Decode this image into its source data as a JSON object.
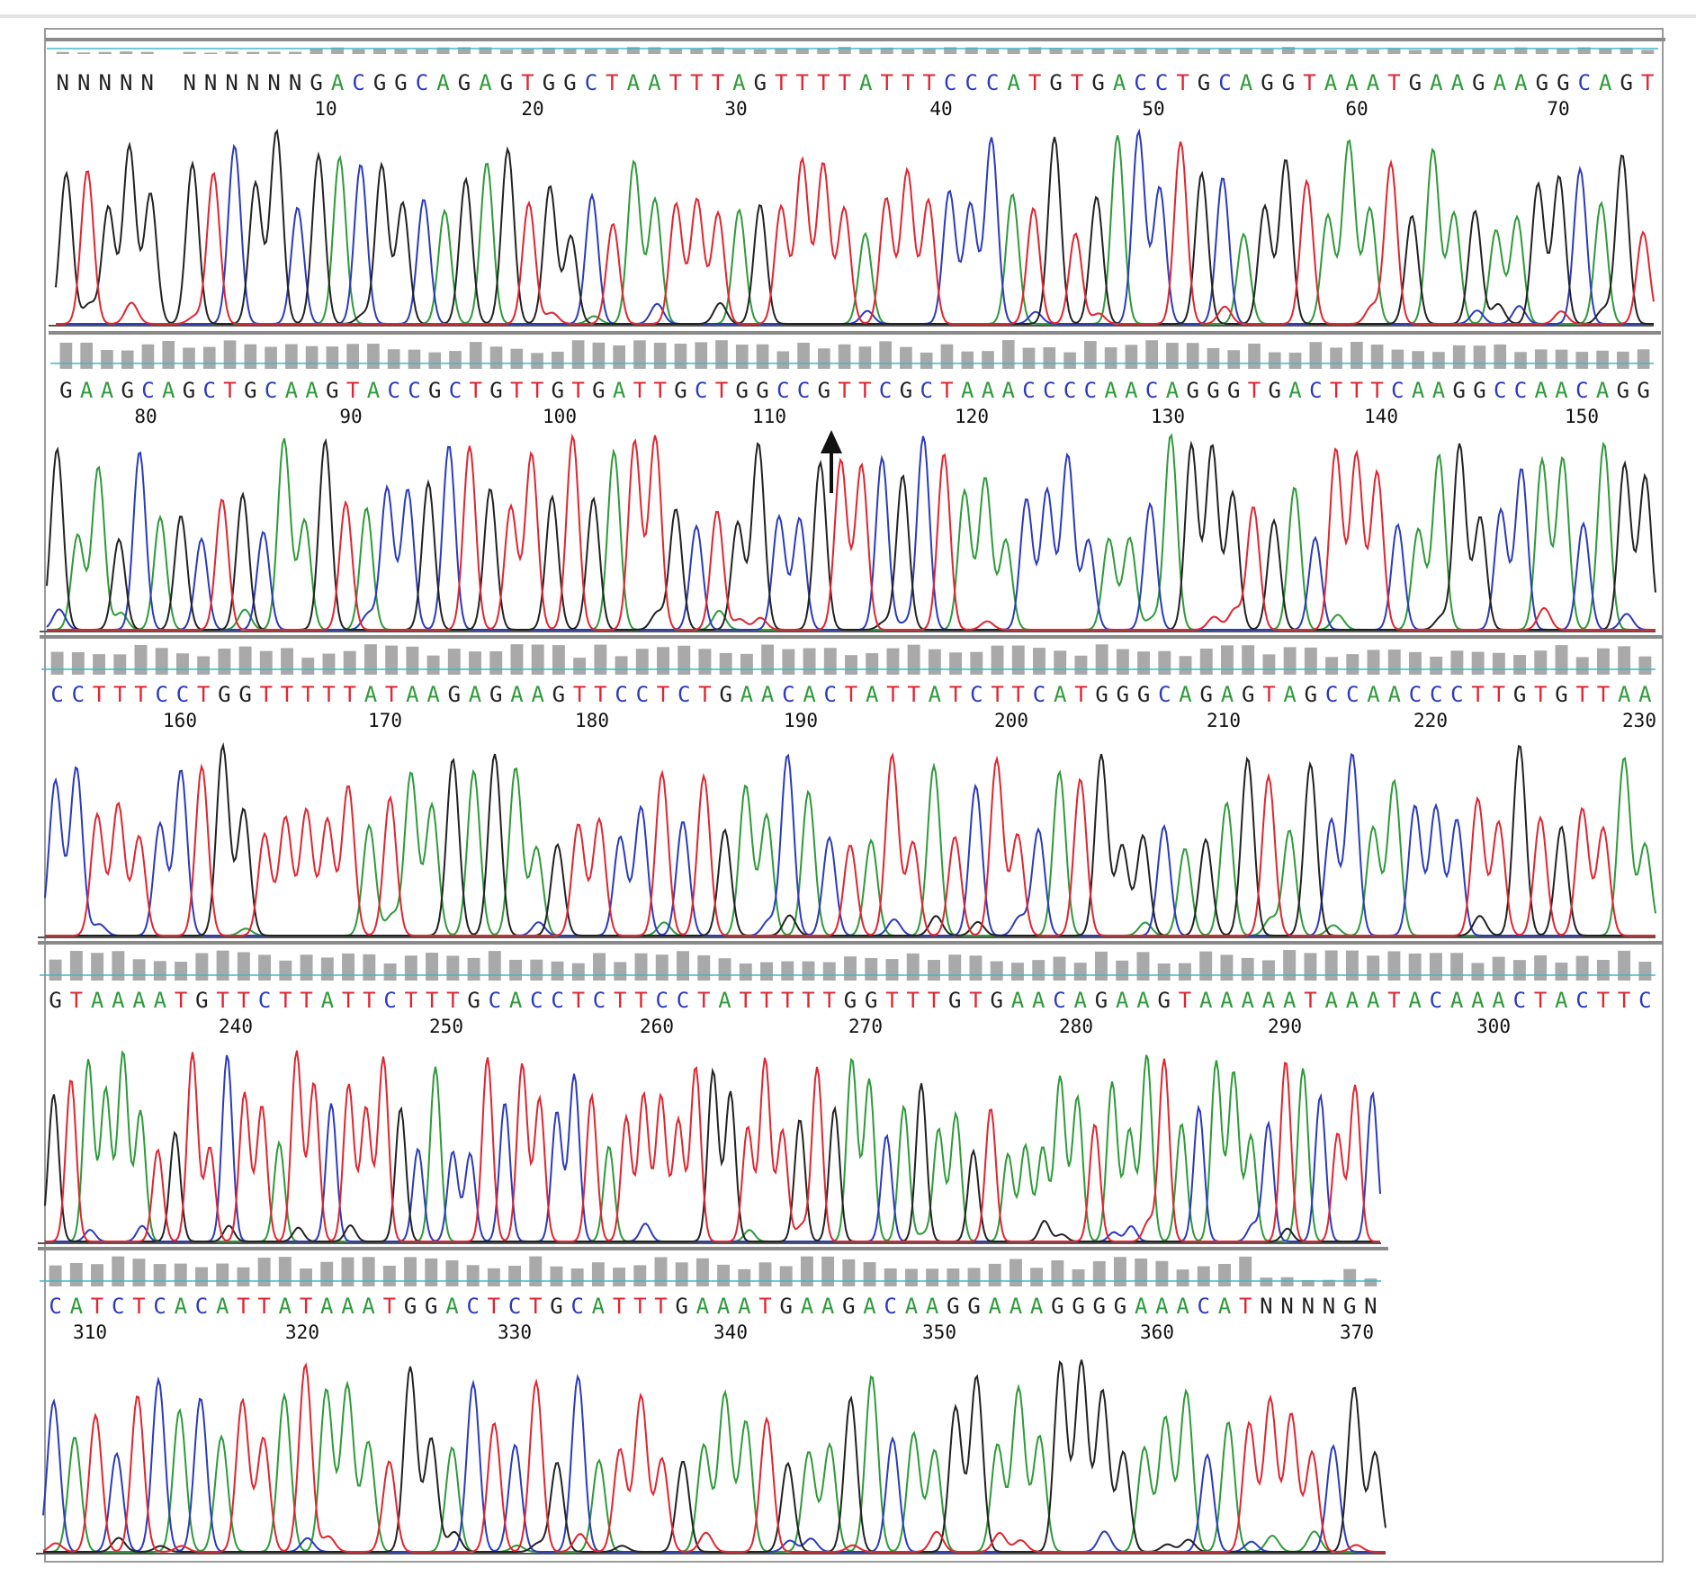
{
  "chart_data": {
    "type": "line",
    "base_colors": {
      "A": "#2e9a3a",
      "C": "#2b3bbb",
      "G": "#222222",
      "T": "#e02530",
      "N": "#222222"
    },
    "calls": [
      "NNNNN NNNNNNGACGGCAGAGTGGCTAATTTAGTTTTATTTCCCATGTGACCTGCAGGTAAATGAAGAAGGCAGT",
      "GAAGCAGCTGCAAGTACCGCTGTTGTGATTGCTGGCCGTTCGCTAAACCCCAACAGGGTGACTTTCAAGGCCAACAGG",
      "CCTTTCCTGGTTTTTATAAGAGAAGTTCCTCTGAACACTATTATCTTCATGGGCAGAGTAGCCAACCCTTGTGTTAA",
      "GTAAAATGTTCTTATTCTTTGCACCTCTTCCTATTTTTGGTTTGTGAACAGAAGTAAAAATAAATACAAACTACTTC",
      "CATCTCACATTATAAATGGACTCTGCATTTGAAATGAAGACAAGGAAAGGGGAAACATNNNNGN"
    ],
    "positions": [
      [
        "10",
        "20",
        "30",
        "40",
        "50",
        "60",
        "70"
      ],
      [
        "80",
        "90",
        "100",
        "110",
        "120",
        "130",
        "140",
        "150"
      ],
      [
        "160",
        "170",
        "180",
        "190",
        "200",
        "210",
        "220",
        "230"
      ],
      [
        "240",
        "250",
        "260",
        "270",
        "280",
        "290",
        "300"
      ],
      [
        "310",
        "320",
        "330",
        "340",
        "350",
        "360",
        "370"
      ]
    ],
    "marker": {
      "type": "arrow",
      "panel": 2,
      "position": 113
    },
    "grid": false,
    "legend": "none"
  }
}
